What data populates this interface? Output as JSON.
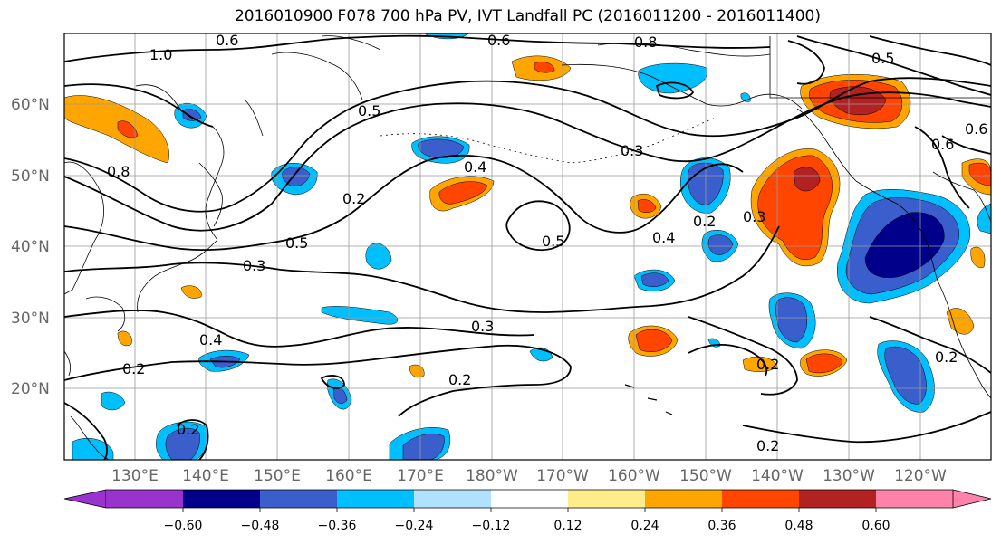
{
  "title": "2016010900 F078 700 hPa PV, IVT Landfall PC (2016011200 - 2016011400)",
  "lat_labels": [
    "60°N",
    "50°N",
    "40°N",
    "30°N",
    "20°N"
  ],
  "lon_labels": [
    "130°E",
    "140°E",
    "150°E",
    "160°E",
    "170°E",
    "180°W",
    "170°W",
    "160°W",
    "150°W",
    "140°W",
    "130°W",
    "120°W"
  ],
  "colorbar": {
    "ticks": [
      "−0.60",
      "−0.48",
      "−0.36",
      "−0.24",
      "−0.12",
      "0.12",
      "0.24",
      "0.36",
      "0.48",
      "0.60"
    ],
    "colors": [
      "#9a32cd",
      "#00008b",
      "#3a5fcd",
      "#00bfff",
      "#b0e2ff",
      "#ffffff",
      "#ffec8b",
      "#ffa500",
      "#ff4500",
      "#b22222",
      "#ff82ab"
    ]
  },
  "contour_labels": [
    "0.6",
    "0.6",
    "0.8",
    "1.0",
    "0.8",
    "0.5",
    "0.4",
    "0.3",
    "0.2",
    "0.5",
    "0.5",
    "0.3",
    "0.4",
    "0.2",
    "0.3",
    "0.2",
    "0.2",
    "0.4",
    "0.2",
    "0.2",
    "0.6",
    "0.6",
    "0.5",
    "0.2",
    "0.3"
  ]
}
